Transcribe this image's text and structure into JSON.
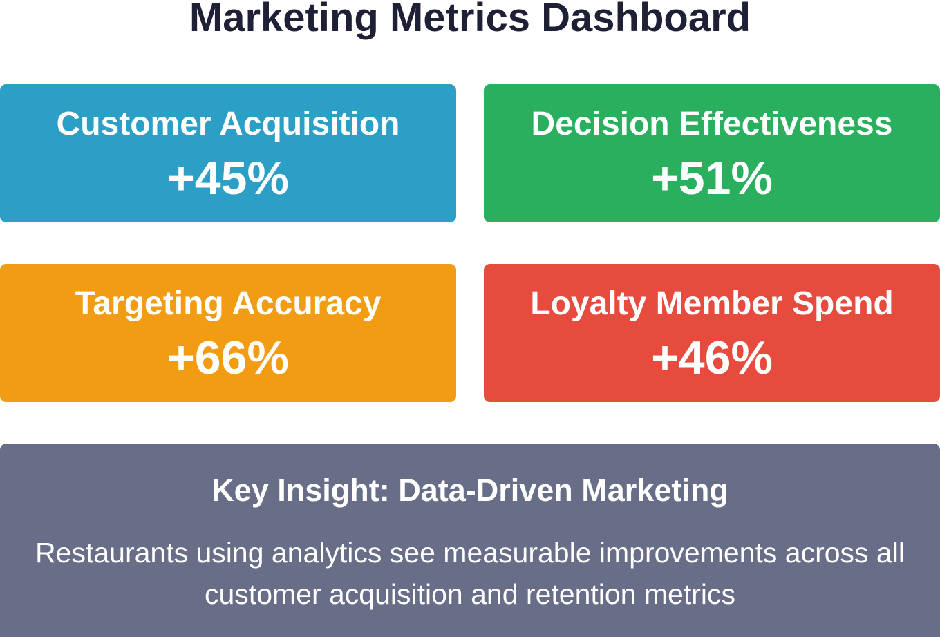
{
  "header": {
    "title": "Marketing Metrics Dashboard"
  },
  "cards": [
    {
      "label": "Customer Acquisition",
      "value": "+45%",
      "color": "#2b9fc6"
    },
    {
      "label": "Decision Effectiveness",
      "value": "+51%",
      "color": "#29af5e"
    },
    {
      "label": "Targeting Accuracy",
      "value": "+66%",
      "color": "#f29c14"
    },
    {
      "label": "Loyalty Member Spend",
      "value": "+46%",
      "color": "#e64b3d"
    }
  ],
  "insight": {
    "title": "Key Insight: Data-Driven Marketing",
    "text": "Restaurants using analytics see measurable improvements across all customer acquisition and retention metrics",
    "color": "#686e87"
  }
}
